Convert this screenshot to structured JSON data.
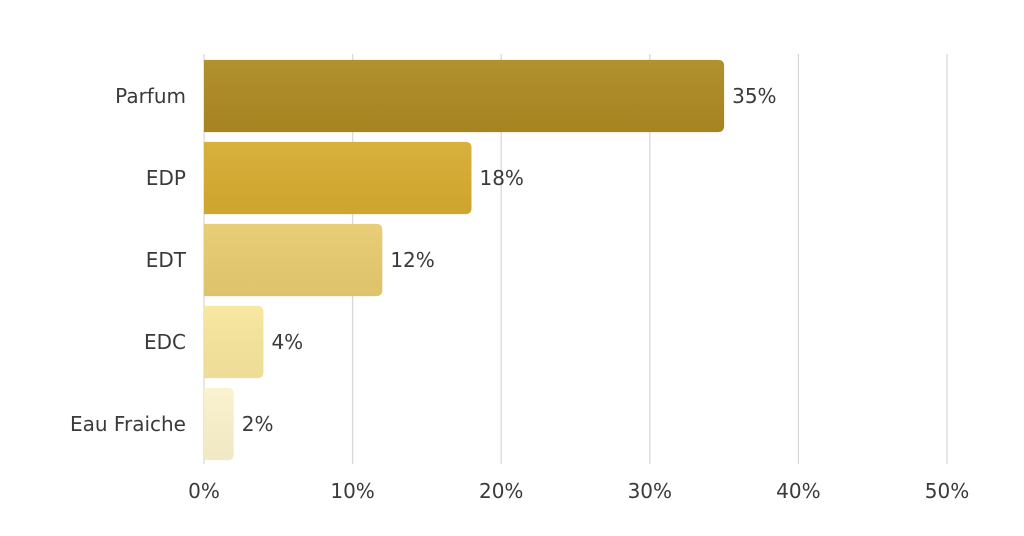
{
  "chart_data": {
    "type": "bar",
    "orientation": "horizontal",
    "categories": [
      "Parfum",
      "EDP",
      "EDT",
      "EDC",
      "Eau Fraiche"
    ],
    "values": [
      35,
      18,
      12,
      4,
      2
    ],
    "data_labels": [
      "35%",
      "18%",
      "12%",
      "4%",
      "2%"
    ],
    "bar_colors": [
      "#AD8A22",
      "#D6AC30",
      "#E8CB70",
      "#F7E69C",
      "#FBF2CC"
    ],
    "xlim": [
      0,
      50
    ],
    "xticks": [
      0,
      10,
      20,
      30,
      40,
      50
    ],
    "xtick_labels": [
      "0%",
      "10%",
      "20%",
      "30%",
      "40%",
      "50%"
    ],
    "grid": "vertical",
    "grid_color": "#d9d9d9",
    "title": "",
    "xlabel": "",
    "ylabel": ""
  }
}
